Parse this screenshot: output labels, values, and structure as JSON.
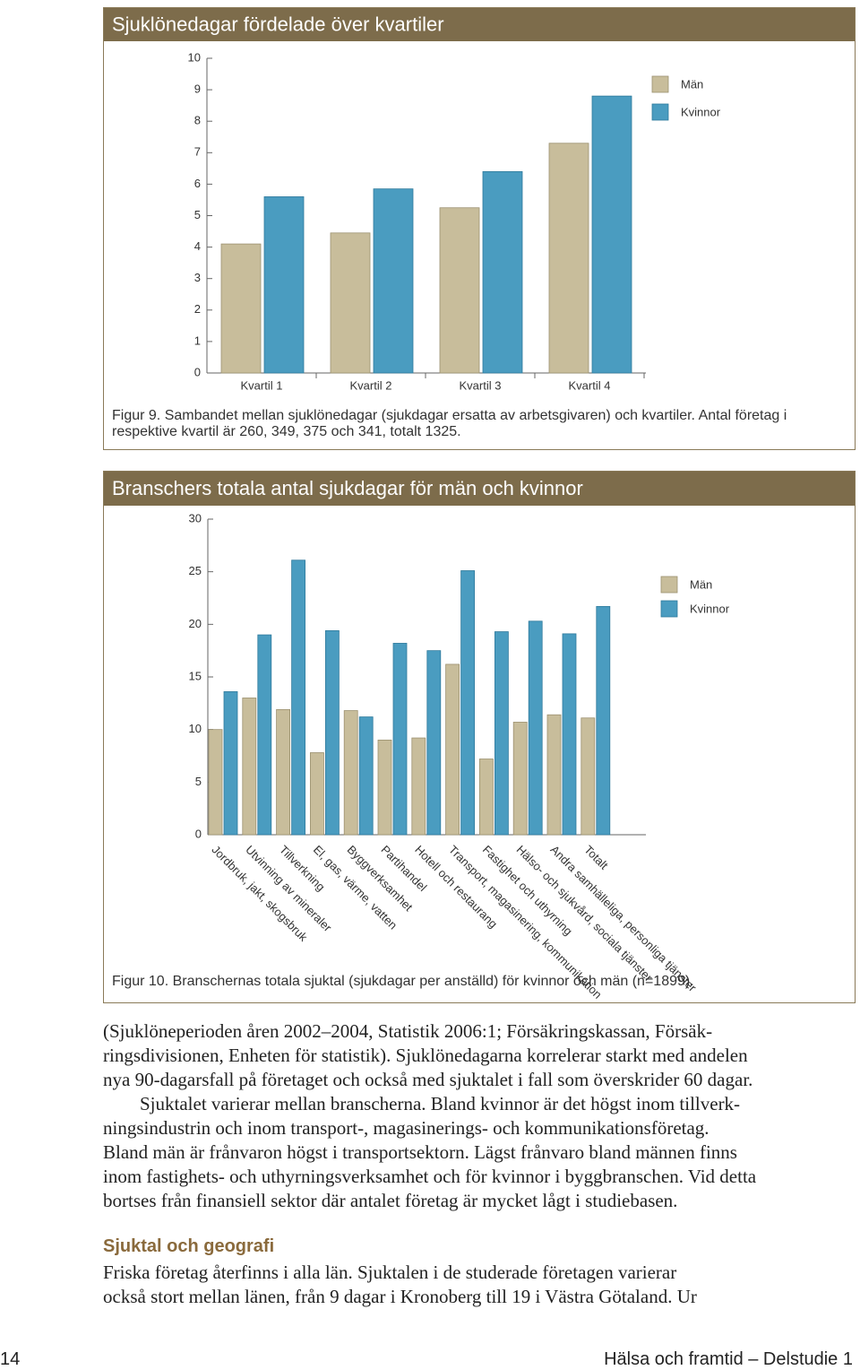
{
  "chart_data": [
    {
      "type": "bar",
      "title": "Sjuklönedagar fördelade över kvartiler",
      "categories": [
        "Kvartil 1",
        "Kvartil 2",
        "Kvartil 3",
        "Kvartil 4"
      ],
      "series": [
        {
          "name": "Män",
          "color": "#c8bd9b",
          "values": [
            4.1,
            4.45,
            5.25,
            7.3
          ]
        },
        {
          "name": "Kvinnor",
          "color": "#4a9cc0",
          "values": [
            5.6,
            5.85,
            6.4,
            8.8
          ]
        }
      ],
      "ylim": [
        0,
        10
      ],
      "yticks": [
        0,
        1,
        2,
        3,
        4,
        5,
        6,
        7,
        8,
        9,
        10
      ],
      "caption": "Figur 9. Sambandet mellan sjuklönedagar (sjukdagar ersatta av arbetsgivaren) och kvartiler. Antal företag i respektive kvartil är 260, 349, 375 och 341, totalt 1325."
    },
    {
      "type": "bar",
      "title": "Branschers totala antal sjukdagar för män och kvinnor",
      "categories": [
        "Jordbruk, jakt, skogsbruk",
        "Utvinning av mineraler",
        "Tillverkning",
        "El, gas, värme, vatten",
        "Byggverksamhet",
        "Partihandel",
        "Hotell och restaurang",
        "Transport, magasinering, kommunikation",
        "Fastighet och uthyrning",
        "Hälso- och sjukvård, sociala tjänster",
        "Andra samhälleliga, personliga tjänster",
        "Totalt"
      ],
      "series": [
        {
          "name": "Män",
          "color": "#c8bd9b",
          "values": [
            10.0,
            13.0,
            11.9,
            7.8,
            11.8,
            9.0,
            9.2,
            16.2,
            7.2,
            10.7,
            11.4,
            11.1
          ]
        },
        {
          "name": "Kvinnor",
          "color": "#4a9cc0",
          "values": [
            13.6,
            19.0,
            26.1,
            19.4,
            11.2,
            18.2,
            17.5,
            25.1,
            19.3,
            20.3,
            19.1,
            21.7
          ]
        }
      ],
      "ylim": [
        0,
        30
      ],
      "yticks": [
        0,
        5,
        10,
        15,
        20,
        25,
        30
      ],
      "caption": "Figur 10. Branschernas totala sjuktal (sjukdagar per anställd) för kvinnor och män (n=1899)."
    }
  ],
  "text": {
    "paragraph_1": [
      "(Sjuklöneperioden åren 2002–2004, Statistik 2006:1; Försäkringskassan, Försäk-",
      "ringsdivisionen, Enheten för statistik). Sjuklönedagarna korrelerar starkt med andelen",
      "nya 90-dagarsfall på företaget och också med sjuktalet i fall som överskrider 60 dagar."
    ],
    "paragraph_2": [
      "Sjuktalet varierar mellan branscherna. Bland kvinnor är det högst inom tillverk-",
      "ningsindustrin och inom transport-, magasinerings- och kommunikationsföretag.",
      "Bland män är frånvaron högst i transportsektorn. Lägst frånvaro bland männen finns",
      "inom fastighets- och uthyrningsverksamhet och för kvinnor i byggbranschen. Vid detta",
      "bortses från finansiell sektor där antalet företag är mycket lågt i studiebasen."
    ],
    "heading": "Sjuktal och geografi",
    "paragraph_3": [
      "Friska företag återfinns i alla län. Sjuktalen i de studerade företagen varierar",
      "också stort mellan länen, från 9 dagar i Kronoberg till 19 i Västra Götaland. Ur"
    ]
  },
  "footer": {
    "page_number": "14",
    "title": "Hälsa och framtid – Delstudie 1"
  }
}
